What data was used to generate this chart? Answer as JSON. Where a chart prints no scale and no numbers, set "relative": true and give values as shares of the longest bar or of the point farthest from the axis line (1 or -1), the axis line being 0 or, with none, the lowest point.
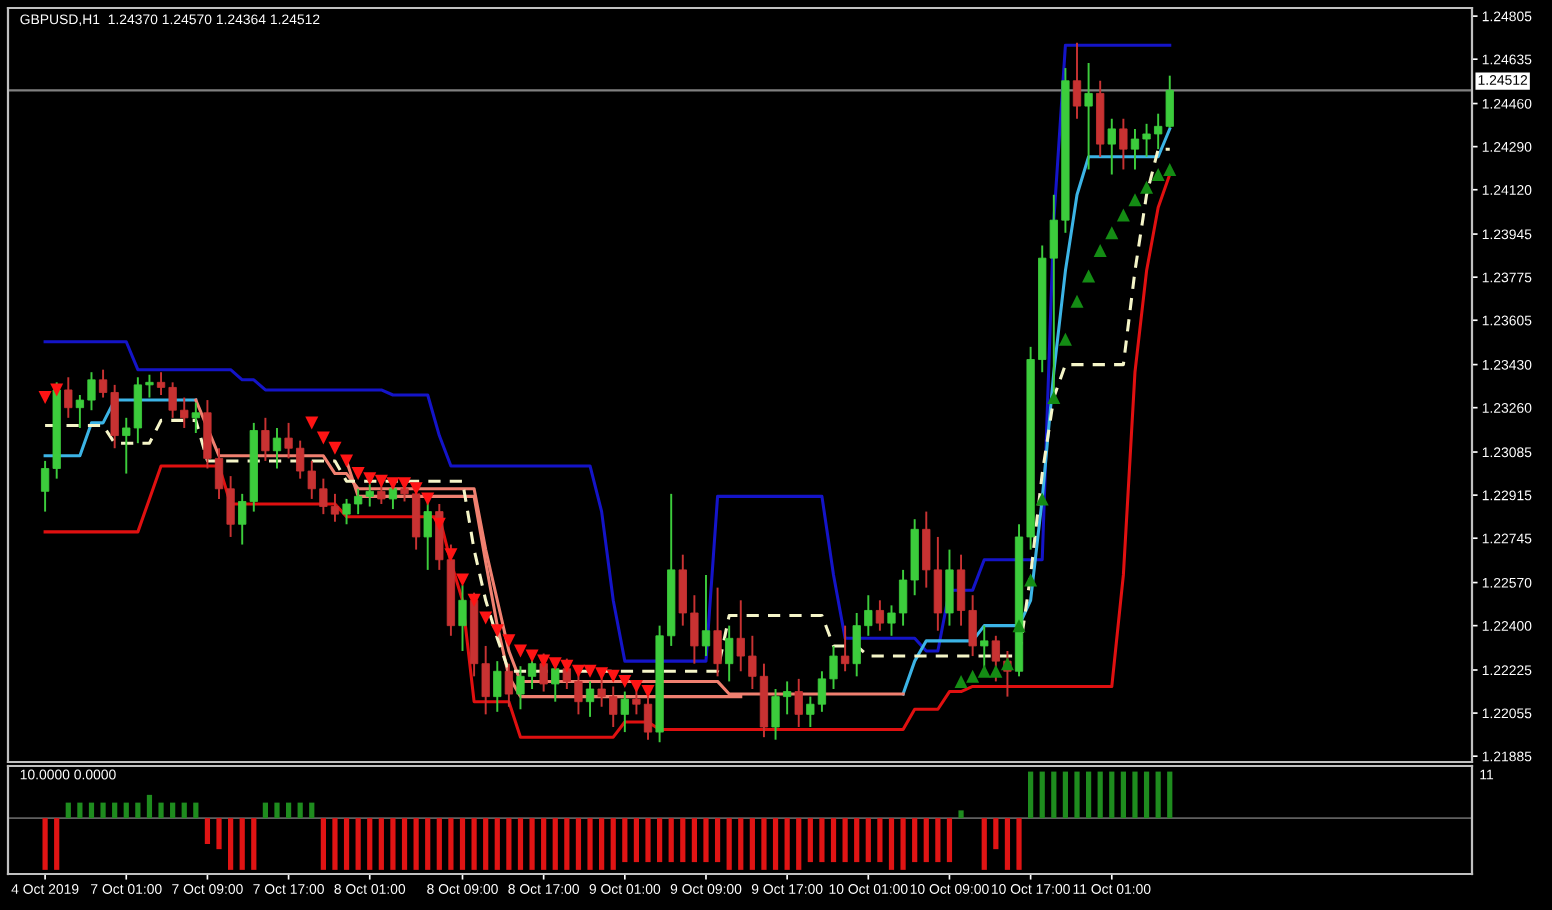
{
  "chart_data": [
    {
      "type": "candlestick",
      "title": "GBPUSD,H1  1.24370 1.24570 1.24364 1.24512",
      "categories": [
        null,
        null,
        null,
        null,
        null,
        null,
        null,
        null,
        null,
        null,
        null,
        null,
        null,
        null,
        null,
        null,
        null,
        null,
        null,
        null,
        null,
        null,
        null,
        null,
        null,
        null,
        null,
        null,
        null,
        null,
        null,
        null,
        null,
        null,
        null,
        null,
        null,
        null,
        null,
        null,
        null,
        null,
        null,
        null,
        null,
        null,
        null,
        null,
        null,
        null,
        null,
        null,
        null,
        null,
        null,
        null,
        null,
        null,
        null,
        null,
        null,
        null,
        null,
        null,
        null,
        null,
        null,
        null,
        null,
        null,
        null,
        null,
        null,
        null,
        null,
        null,
        null,
        null,
        null,
        null,
        null,
        null,
        null,
        null,
        null,
        null,
        null,
        null,
        null,
        null,
        null,
        null,
        null,
        null,
        null,
        null,
        null,
        null
      ],
      "ohlc": [
        [
          1.2293,
          1.2305,
          1.2285,
          1.2302
        ],
        [
          1.2302,
          1.2336,
          1.2298,
          1.2333
        ],
        [
          1.2333,
          1.2338,
          1.2322,
          1.2326
        ],
        [
          1.2326,
          1.2331,
          1.2318,
          1.2329
        ],
        [
          1.2329,
          1.234,
          1.2325,
          1.2337
        ],
        [
          1.2337,
          1.2341,
          1.233,
          1.2332
        ],
        [
          1.2332,
          1.2335,
          1.231,
          1.2315
        ],
        [
          1.2315,
          1.2322,
          1.23,
          1.2318
        ],
        [
          1.2318,
          1.2338,
          1.2312,
          1.2335
        ],
        [
          1.2335,
          1.2339,
          1.233,
          1.2336
        ],
        [
          1.2336,
          1.234,
          1.2331,
          1.2334
        ],
        [
          1.2334,
          1.2336,
          1.2322,
          1.2325
        ],
        [
          1.2325,
          1.233,
          1.2318,
          1.2322
        ],
        [
          1.2322,
          1.2328,
          1.2316,
          1.2324
        ],
        [
          1.2324,
          1.2329,
          1.2302,
          1.2306
        ],
        [
          1.2306,
          1.231,
          1.229,
          1.2294
        ],
        [
          1.2294,
          1.2299,
          1.2275,
          1.228
        ],
        [
          1.228,
          1.2292,
          1.2272,
          1.2289
        ],
        [
          1.2289,
          1.232,
          1.2285,
          1.2317
        ],
        [
          1.2317,
          1.2322,
          1.2305,
          1.2309
        ],
        [
          1.2309,
          1.2318,
          1.2302,
          1.2314
        ],
        [
          1.2314,
          1.232,
          1.2306,
          1.231
        ],
        [
          1.231,
          1.2313,
          1.2298,
          1.2301
        ],
        [
          1.2301,
          1.2305,
          1.229,
          1.2294
        ],
        [
          1.2294,
          1.2298,
          1.2284,
          1.2287
        ],
        [
          1.2287,
          1.2292,
          1.2281,
          1.2284
        ],
        [
          1.2284,
          1.229,
          1.228,
          1.2288
        ],
        [
          1.2288,
          1.2294,
          1.2284,
          1.2291
        ],
        [
          1.2291,
          1.2296,
          1.2287,
          1.2293
        ],
        [
          1.2293,
          1.2297,
          1.2288,
          1.229
        ],
        [
          1.229,
          1.2296,
          1.2286,
          1.2294
        ],
        [
          1.2294,
          1.2298,
          1.2289,
          1.2292
        ],
        [
          1.2292,
          1.2296,
          1.227,
          1.2275
        ],
        [
          1.2275,
          1.229,
          1.2262,
          1.2285
        ],
        [
          1.2285,
          1.2288,
          1.2262,
          1.2266
        ],
        [
          1.2266,
          1.2272,
          1.2236,
          1.224
        ],
        [
          1.224,
          1.2256,
          1.223,
          1.225
        ],
        [
          1.225,
          1.2253,
          1.222,
          1.2225
        ],
        [
          1.2225,
          1.2232,
          1.2205,
          1.2212
        ],
        [
          1.2212,
          1.2226,
          1.2206,
          1.2222
        ],
        [
          1.2222,
          1.2225,
          1.2208,
          1.2213
        ],
        [
          1.2213,
          1.2224,
          1.2207,
          1.222
        ],
        [
          1.222,
          1.2228,
          1.2215,
          1.2225
        ],
        [
          1.2225,
          1.2229,
          1.2214,
          1.2217
        ],
        [
          1.2217,
          1.2226,
          1.221,
          1.2223
        ],
        [
          1.2223,
          1.2227,
          1.2215,
          1.2218
        ],
        [
          1.2218,
          1.2222,
          1.2205,
          1.221
        ],
        [
          1.221,
          1.2218,
          1.2204,
          1.2215
        ],
        [
          1.2215,
          1.222,
          1.2208,
          1.2212
        ],
        [
          1.2212,
          1.2216,
          1.22,
          1.2205
        ],
        [
          1.2205,
          1.2214,
          1.2198,
          1.2211
        ],
        [
          1.2211,
          1.2216,
          1.2205,
          1.2209
        ],
        [
          1.2209,
          1.2212,
          1.2195,
          1.2198
        ],
        [
          1.2198,
          1.224,
          1.2194,
          1.2236
        ],
        [
          1.2236,
          1.2292,
          1.2232,
          1.2262
        ],
        [
          1.2262,
          1.2268,
          1.224,
          1.2245
        ],
        [
          1.2245,
          1.2252,
          1.2225,
          1.2232
        ],
        [
          1.2232,
          1.226,
          1.2228,
          1.2238
        ],
        [
          1.2238,
          1.2255,
          1.222,
          1.2225
        ],
        [
          1.2225,
          1.224,
          1.2218,
          1.2235
        ],
        [
          1.2235,
          1.225,
          1.2222,
          1.2228
        ],
        [
          1.2228,
          1.2236,
          1.2215,
          1.222
        ],
        [
          1.222,
          1.2225,
          1.2196,
          1.22
        ],
        [
          1.22,
          1.2215,
          1.2195,
          1.2212
        ],
        [
          1.2212,
          1.2218,
          1.2205,
          1.2214
        ],
        [
          1.2214,
          1.2219,
          1.22,
          1.2205
        ],
        [
          1.2205,
          1.2212,
          1.22,
          1.2209
        ],
        [
          1.2209,
          1.2222,
          1.2206,
          1.2219
        ],
        [
          1.2219,
          1.2232,
          1.2215,
          1.2228
        ],
        [
          1.2228,
          1.224,
          1.2222,
          1.2225
        ],
        [
          1.2225,
          1.2245,
          1.222,
          1.224
        ],
        [
          1.224,
          1.2252,
          1.2236,
          1.2246
        ],
        [
          1.2246,
          1.225,
          1.2238,
          1.2241
        ],
        [
          1.2241,
          1.2248,
          1.2236,
          1.2245
        ],
        [
          1.2245,
          1.2262,
          1.224,
          1.2258
        ],
        [
          1.2258,
          1.2282,
          1.2252,
          1.2278
        ],
        [
          1.2278,
          1.2285,
          1.2255,
          1.2262
        ],
        [
          1.2262,
          1.2275,
          1.2238,
          1.2245
        ],
        [
          1.2245,
          1.227,
          1.224,
          1.2262
        ],
        [
          1.2262,
          1.2268,
          1.224,
          1.2246
        ],
        [
          1.2246,
          1.2252,
          1.2228,
          1.2232
        ],
        [
          1.2232,
          1.224,
          1.2222,
          1.2234
        ],
        [
          1.2234,
          1.2236,
          1.2218,
          1.2226
        ],
        [
          1.2226,
          1.223,
          1.2212,
          1.2222
        ],
        [
          1.2222,
          1.228,
          1.222,
          1.2275
        ],
        [
          1.2275,
          1.235,
          1.227,
          1.2345
        ],
        [
          1.2345,
          1.239,
          1.234,
          1.2385
        ],
        [
          1.2385,
          1.241,
          1.233,
          1.24
        ],
        [
          1.24,
          1.246,
          1.2395,
          1.2455
        ],
        [
          1.2455,
          1.247,
          1.244,
          1.2445
        ],
        [
          1.2445,
          1.2462,
          1.242,
          1.245
        ],
        [
          1.245,
          1.2455,
          1.2425,
          1.243
        ],
        [
          1.243,
          1.244,
          1.2418,
          1.2436
        ],
        [
          1.2436,
          1.244,
          1.242,
          1.2428
        ],
        [
          1.2428,
          1.2436,
          1.242,
          1.2432
        ],
        [
          1.2432,
          1.2438,
          1.2425,
          1.2434
        ],
        [
          1.2434,
          1.2442,
          1.2428,
          1.2437
        ],
        [
          1.2437,
          1.2457,
          1.24364,
          1.24512
        ]
      ],
      "colors": [
        "#3ccc3c",
        "#3ccc3c",
        "#c83232",
        "#3ccc3c",
        "#3ccc3c",
        "#c83232",
        "#c83232",
        "#3ccc3c",
        "#3ccc3c",
        "#3ccc3c",
        "#c83232",
        "#c83232",
        "#c83232",
        "#3ccc3c",
        "#c83232",
        "#c83232",
        "#c83232",
        "#3ccc3c",
        "#3ccc3c",
        "#c83232",
        "#3ccc3c",
        "#c83232",
        "#c83232",
        "#c83232",
        "#c83232",
        "#c83232",
        "#3ccc3c",
        "#3ccc3c",
        "#3ccc3c",
        "#c83232",
        "#3ccc3c",
        "#c83232",
        "#c83232",
        "#3ccc3c",
        "#c83232",
        "#c83232",
        "#3ccc3c",
        "#c83232",
        "#c83232",
        "#3ccc3c",
        "#c83232",
        "#3ccc3c",
        "#3ccc3c",
        "#c83232",
        "#3ccc3c",
        "#c83232",
        "#c83232",
        "#3ccc3c",
        "#c83232",
        "#c83232",
        "#3ccc3c",
        "#c83232",
        "#c83232",
        "#3ccc3c",
        "#3ccc3c",
        "#c83232",
        "#c83232",
        "#3ccc3c",
        "#c83232",
        "#3ccc3c",
        "#c83232",
        "#c83232",
        "#c83232",
        "#3ccc3c",
        "#3ccc3c",
        "#c83232",
        "#3ccc3c",
        "#3ccc3c",
        "#3ccc3c",
        "#c83232",
        "#3ccc3c",
        "#3ccc3c",
        "#c83232",
        "#3ccc3c",
        "#3ccc3c",
        "#3ccc3c",
        "#c83232",
        "#c83232",
        "#3ccc3c",
        "#c83232",
        "#c83232",
        "#3ccc3c",
        "#c83232",
        "#c83232",
        "#3ccc3c",
        "#3ccc3c",
        "#3ccc3c",
        "#3ccc3c",
        "#3ccc3c",
        "#c83232",
        "#3ccc3c",
        "#c83232",
        "#3ccc3c",
        "#c83232",
        "#3ccc3c",
        "#3ccc3c",
        "#3ccc3c",
        "#3ccc3c"
      ],
      "series": [
        {
          "type": "line",
          "color": "#1414c8",
          "values": [
            1.2352,
            1.2352,
            1.2352,
            1.2352,
            1.2352,
            1.2352,
            1.2352,
            1.2352,
            1.2341,
            1.2341,
            1.2341,
            1.2341,
            1.2341,
            1.2341,
            1.2341,
            1.2341,
            1.2341,
            1.2337,
            1.2337,
            1.2333,
            1.2333,
            1.2333,
            1.2333,
            1.2333,
            1.2333,
            1.2333,
            1.2333,
            1.2333,
            1.2333,
            1.2333,
            1.2331,
            1.2331,
            1.2331,
            1.2331,
            1.2315,
            1.2303,
            1.2303,
            1.2303,
            1.2303,
            1.2303,
            1.2303,
            1.2303,
            1.2303,
            1.2303,
            1.2303,
            1.2303,
            1.2303,
            1.2303,
            1.2285,
            1.225,
            1.2226,
            1.2226,
            1.2226,
            1.2226,
            1.2226,
            1.2226,
            1.2226,
            1.2226,
            1.2291,
            1.2291,
            1.2291,
            1.2291,
            1.2291,
            1.2291,
            1.2291,
            1.2291,
            1.2291,
            1.2291,
            1.226,
            1.2235,
            1.2235,
            1.2235,
            1.2235,
            1.2235,
            1.2235,
            1.2235,
            1.223,
            1.223,
            1.2254,
            1.2254,
            1.2254,
            1.2266,
            1.2266,
            1.2266,
            1.2266,
            1.2266,
            1.2266,
            1.24,
            1.2469,
            1.2469,
            1.2469,
            1.2469,
            1.2469,
            1.2469,
            1.2469,
            1.2469,
            1.2469,
            1.2469
          ]
        },
        {
          "type": "line",
          "color": "#e01010",
          "values": [
            1.2277,
            1.2277,
            1.2277,
            1.2277,
            1.2277,
            1.2277,
            1.2277,
            1.2277,
            1.2277,
            1.229,
            1.2303,
            1.2303,
            1.2303,
            1.2303,
            1.2303,
            1.2303,
            1.2288,
            1.2288,
            1.2288,
            1.2288,
            1.2288,
            1.2288,
            1.2288,
            1.2288,
            1.2288,
            1.2288,
            1.2283,
            1.2283,
            1.2283,
            1.2283,
            1.2283,
            1.2283,
            1.2283,
            1.2283,
            1.2283,
            1.2265,
            1.225,
            1.221,
            1.221,
            1.221,
            1.221,
            1.2196,
            1.2196,
            1.2196,
            1.2196,
            1.2196,
            1.2196,
            1.2196,
            1.2196,
            1.2196,
            1.2202,
            1.2202,
            1.2202,
            1.2199,
            1.2199,
            1.2199,
            1.2199,
            1.2199,
            1.2199,
            1.2199,
            1.2199,
            1.2199,
            1.2199,
            1.2199,
            1.2199,
            1.2199,
            1.2199,
            1.2199,
            1.2199,
            1.2199,
            1.2199,
            1.2199,
            1.2199,
            1.2199,
            1.2199,
            1.2207,
            1.2207,
            1.2207,
            1.2214,
            1.2214,
            1.2216,
            1.2216,
            1.2216,
            1.2216,
            1.2216,
            1.2216,
            1.2216,
            1.2216,
            1.2216,
            1.2216,
            1.2216,
            1.2216,
            1.2216,
            1.226,
            1.234,
            1.238,
            1.2405,
            1.2418
          ]
        },
        {
          "type": "line",
          "color": "#3cb4e6",
          "values": [
            1.2307,
            1.2307,
            1.2307,
            1.2307,
            1.232,
            1.232,
            1.2329,
            1.2329,
            1.2329,
            1.2329,
            1.2329,
            1.2329,
            1.2329,
            1.2329,
            null,
            null,
            null,
            null,
            null,
            null,
            null,
            null,
            null,
            null,
            null,
            null,
            null,
            null,
            null,
            null,
            null,
            null,
            null,
            null,
            null,
            null,
            null,
            null,
            null,
            null,
            null,
            null,
            null,
            null,
            null,
            null,
            null,
            null,
            null,
            null,
            null,
            null,
            null,
            null,
            null,
            null,
            null,
            null,
            null,
            null,
            null,
            null,
            null,
            null,
            null,
            null,
            null,
            null,
            null,
            null,
            null,
            null,
            null,
            null,
            1.2213,
            1.2226,
            1.2234,
            1.2234,
            1.2234,
            1.2234,
            1.2234,
            1.224,
            1.224,
            1.224,
            1.224,
            1.225,
            1.229,
            1.234,
            1.238,
            1.241,
            1.2425,
            1.2425,
            1.2425,
            1.2425,
            1.2425,
            1.2425,
            1.2425,
            1.2436
          ]
        },
        {
          "type": "line",
          "color": "#f08070",
          "values": [
            null,
            null,
            null,
            null,
            null,
            null,
            null,
            null,
            null,
            null,
            null,
            null,
            null,
            1.2329,
            1.2318,
            1.2307,
            1.2307,
            1.2307,
            1.2307,
            1.2307,
            1.2307,
            1.2307,
            1.2307,
            1.2307,
            1.2307,
            1.23,
            1.23,
            1.2294,
            1.2294,
            1.2294,
            1.2294,
            1.2294,
            1.2294,
            1.2294,
            1.2294,
            1.2294,
            1.2294,
            1.2294,
            1.227,
            1.225,
            1.223,
            1.2218,
            1.2218,
            1.2218,
            1.2218,
            1.2218,
            1.2218,
            1.2218,
            1.2218,
            1.2218,
            1.2218,
            1.2218,
            1.2218,
            1.2218,
            1.2218,
            1.2218,
            1.2218,
            1.2218,
            1.2218,
            1.2213,
            1.2213,
            1.2213,
            1.2213,
            1.2213,
            1.2213,
            1.2213,
            1.2213,
            1.2213,
            1.2213,
            1.2213,
            1.2213,
            1.2213,
            1.2213,
            1.2213,
            1.2213,
            null,
            null,
            null,
            null,
            null,
            null,
            null,
            null,
            null,
            null,
            null,
            null,
            null,
            null,
            null,
            null,
            null,
            null,
            null,
            null,
            null,
            null,
            null
          ]
        },
        {
          "type": "line",
          "color": "#f08070",
          "values": [
            null,
            null,
            null,
            null,
            null,
            null,
            null,
            null,
            null,
            null,
            null,
            null,
            null,
            null,
            null,
            null,
            null,
            null,
            null,
            null,
            null,
            null,
            null,
            null,
            null,
            null,
            1.2305,
            1.2291,
            1.2291,
            1.2291,
            1.2291,
            1.2291,
            1.2291,
            1.2291,
            1.2291,
            1.2291,
            1.2291,
            1.2291,
            1.2265,
            1.224,
            1.222,
            1.2212,
            1.2212,
            1.2212,
            1.2212,
            1.2212,
            1.2212,
            1.2212,
            1.2212,
            1.2212,
            1.2212,
            1.2212,
            1.2212,
            1.2212,
            1.2212,
            1.2212,
            1.2212,
            1.2212,
            1.2212,
            1.2212,
            1.2212,
            null,
            null,
            null,
            null,
            null,
            null,
            null,
            null,
            null,
            null,
            null,
            null,
            null,
            null,
            null,
            null,
            null,
            null,
            null,
            null,
            null,
            null,
            null,
            null,
            null,
            null,
            null,
            null,
            null,
            null,
            null,
            null,
            null,
            null,
            null,
            null,
            null
          ]
        },
        {
          "type": "line",
          "color": "#f5f5c8",
          "line_style": "dashed",
          "values": [
            1.2319,
            1.2319,
            1.2319,
            1.2319,
            1.2319,
            1.2319,
            1.2312,
            1.2312,
            1.2312,
            1.2312,
            1.2321,
            1.2321,
            1.2321,
            1.2321,
            1.2305,
            1.2305,
            1.2305,
            1.2305,
            1.2305,
            1.2305,
            1.2305,
            1.2305,
            1.2305,
            1.2305,
            1.2305,
            1.2305,
            1.2297,
            1.2297,
            1.2297,
            1.2297,
            1.2297,
            1.2297,
            1.2297,
            1.2297,
            1.2297,
            1.2297,
            1.2297,
            1.227,
            1.225,
            1.2235,
            1.2222,
            1.2222,
            1.2222,
            1.2222,
            1.2222,
            1.2222,
            1.2222,
            1.2222,
            1.2222,
            1.2222,
            1.2222,
            1.2222,
            1.2222,
            1.2222,
            1.2222,
            1.2222,
            1.2222,
            1.2222,
            1.2222,
            1.2244,
            1.2244,
            1.2244,
            1.2244,
            1.2244,
            1.2244,
            1.2244,
            1.2244,
            1.2244,
            1.2232,
            1.2232,
            1.2232,
            1.2228,
            1.2228,
            1.2228,
            1.2228,
            1.2228,
            1.2228,
            1.2228,
            1.2228,
            1.2228,
            1.2228,
            1.2228,
            1.2228,
            1.2228,
            1.2228,
            1.226,
            1.23,
            1.233,
            1.2343,
            1.2343,
            1.2343,
            1.2343,
            1.2343,
            1.2343,
            1.238,
            1.241,
            1.2428,
            1.2428
          ]
        },
        {
          "type": "scatter",
          "marker": "triangle_down",
          "color": "#ff1414",
          "values": [
            1.233,
            1.2333,
            null,
            null,
            null,
            null,
            null,
            null,
            null,
            null,
            null,
            null,
            null,
            null,
            null,
            null,
            null,
            null,
            null,
            null,
            null,
            null,
            null,
            1.232,
            1.2314,
            1.231,
            1.2305,
            1.23,
            1.2298,
            1.2297,
            1.2296,
            1.2296,
            1.2294,
            1.229,
            1.228,
            1.2268,
            1.2258,
            1.225,
            1.2243,
            1.2238,
            1.2234,
            1.223,
            1.2228,
            1.2226,
            1.2225,
            1.2224,
            1.2222,
            1.2222,
            1.2221,
            1.222,
            1.2218,
            1.2216,
            1.2214,
            null,
            null,
            null,
            null,
            null,
            null,
            null,
            null,
            null,
            null,
            null,
            null,
            null,
            null,
            null,
            null,
            null,
            null,
            null,
            null,
            null,
            null,
            null,
            null,
            null,
            null,
            null,
            null,
            null,
            null,
            null,
            null,
            null,
            null,
            null,
            null,
            null,
            null,
            null,
            null,
            null,
            null,
            null,
            null,
            null
          ]
        },
        {
          "type": "scatter",
          "marker": "triangle",
          "color": "#148c14",
          "values": [
            null,
            null,
            null,
            null,
            null,
            null,
            null,
            null,
            null,
            null,
            null,
            null,
            null,
            null,
            null,
            null,
            null,
            null,
            null,
            null,
            null,
            null,
            null,
            null,
            null,
            null,
            null,
            null,
            null,
            null,
            null,
            null,
            null,
            null,
            null,
            null,
            null,
            null,
            null,
            null,
            null,
            null,
            null,
            null,
            null,
            null,
            null,
            null,
            null,
            null,
            null,
            null,
            null,
            null,
            null,
            null,
            null,
            null,
            null,
            null,
            null,
            null,
            null,
            null,
            null,
            null,
            null,
            null,
            null,
            null,
            null,
            null,
            null,
            null,
            null,
            null,
            null,
            null,
            null,
            1.2218,
            1.222,
            1.2222,
            1.2222,
            1.2225,
            1.224,
            1.2258,
            1.229,
            1.233,
            1.2353,
            1.2368,
            1.2378,
            1.2388,
            1.2395,
            1.2402,
            1.2408,
            1.2413,
            1.2418,
            1.242
          ]
        }
      ],
      "ylim": [
        1.21862,
        1.24837
      ],
      "yticks": [
        {
          "value": 1.24805,
          "label": "1.24805"
        },
        {
          "value": 1.24635,
          "label": "1.24635"
        },
        {
          "value": 1.2446,
          "label": "1.24460"
        },
        {
          "value": 1.2429,
          "label": "1.24290"
        },
        {
          "value": 1.2412,
          "label": "1.24120"
        },
        {
          "value": 1.23945,
          "label": "1.23945"
        },
        {
          "value": 1.23775,
          "label": "1.23775"
        },
        {
          "value": 1.23605,
          "label": "1.23605"
        },
        {
          "value": 1.2343,
          "label": "1.23430"
        },
        {
          "value": 1.2326,
          "label": "1.23260"
        },
        {
          "value": 1.23085,
          "label": "1.23085"
        },
        {
          "value": 1.22915,
          "label": "1.22915"
        },
        {
          "value": 1.22745,
          "label": "1.22745"
        },
        {
          "value": 1.2257,
          "label": "1.22570"
        },
        {
          "value": 1.224,
          "label": "1.22400"
        },
        {
          "value": 1.22225,
          "label": "1.22225"
        },
        {
          "value": 1.22055,
          "label": "1.22055"
        },
        {
          "value": 1.21885,
          "label": "1.21885"
        }
      ],
      "ref_lines": [
        {
          "axis": "y",
          "value": 1.24512,
          "label": "1.24512",
          "color": "#808080"
        }
      ],
      "tick_labels": "y",
      "grid": false
    },
    {
      "type": "bar",
      "relative": true,
      "tick_labels": "x",
      "annotations": [
        "10.0000 0.0000",
        "11"
      ],
      "categories": [
        "4 Oct 2019",
        null,
        null,
        null,
        null,
        null,
        null,
        "7 Oct 01:00",
        null,
        null,
        null,
        null,
        null,
        null,
        "7 Oct 09:00",
        null,
        null,
        null,
        null,
        null,
        null,
        "7 Oct 17:00",
        null,
        null,
        null,
        null,
        null,
        null,
        "8 Oct 01:00",
        null,
        null,
        null,
        null,
        null,
        null,
        null,
        "8 Oct 09:00",
        null,
        null,
        null,
        null,
        null,
        null,
        "8 Oct 17:00",
        null,
        null,
        null,
        null,
        null,
        null,
        "9 Oct 01:00",
        null,
        null,
        null,
        null,
        null,
        null,
        "9 Oct 09:00",
        null,
        null,
        null,
        null,
        null,
        null,
        "9 Oct 17:00",
        null,
        null,
        null,
        null,
        null,
        null,
        "10 Oct 01:00",
        null,
        null,
        null,
        null,
        null,
        null,
        "10 Oct 09:00",
        null,
        null,
        null,
        null,
        null,
        null,
        "10 Oct 17:00",
        null,
        null,
        null,
        null,
        null,
        null,
        "11 Oct 01:00",
        null,
        null,
        null,
        null,
        null
      ],
      "values": [
        -1,
        -1,
        0.3,
        0.3,
        0.3,
        0.3,
        0.3,
        0.3,
        0.3,
        0.45,
        0.3,
        0.3,
        0.3,
        0.3,
        -0.5,
        -0.6,
        -1,
        -1,
        -1,
        0.3,
        0.3,
        0.3,
        0.3,
        0.3,
        -1,
        -1,
        -1,
        -1,
        -1,
        -1,
        -1,
        -1,
        -1,
        -1,
        -1,
        -1,
        -1,
        -1,
        -1,
        -1,
        -1,
        -1,
        -1,
        -1,
        -1,
        -1,
        -1,
        -1,
        -1,
        -1,
        -0.85,
        -0.85,
        -0.85,
        -0.85,
        -0.85,
        -0.85,
        -0.85,
        -0.85,
        -0.85,
        -1,
        -1,
        -1,
        -1,
        -1,
        -1,
        -1,
        -0.85,
        -0.85,
        -0.85,
        -0.85,
        -0.85,
        -0.85,
        -0.85,
        -1,
        -1,
        -0.85,
        -0.85,
        -0.85,
        -0.85,
        0.15,
        null,
        -1,
        -0.6,
        -1,
        -1,
        0.9,
        0.9,
        0.9,
        0.9,
        0.9,
        0.9,
        0.9,
        0.9,
        0.9,
        0.9,
        0.9,
        0.9,
        0.9
      ],
      "colors": [
        "#e01414",
        "#e01414",
        "#1e8c1e",
        "#1e8c1e",
        "#1e8c1e",
        "#1e8c1e",
        "#1e8c1e",
        "#1e8c1e",
        "#1e8c1e",
        "#1e8c1e",
        "#1e8c1e",
        "#1e8c1e",
        "#1e8c1e",
        "#1e8c1e",
        "#e01414",
        "#e01414",
        "#e01414",
        "#e01414",
        "#e01414",
        "#1e8c1e",
        "#1e8c1e",
        "#1e8c1e",
        "#1e8c1e",
        "#1e8c1e",
        "#e01414",
        "#e01414",
        "#e01414",
        "#e01414",
        "#e01414",
        "#e01414",
        "#e01414",
        "#e01414",
        "#e01414",
        "#e01414",
        "#e01414",
        "#e01414",
        "#e01414",
        "#e01414",
        "#e01414",
        "#e01414",
        "#e01414",
        "#e01414",
        "#e01414",
        "#e01414",
        "#e01414",
        "#e01414",
        "#e01414",
        "#e01414",
        "#e01414",
        "#e01414",
        "#e01414",
        "#e01414",
        "#e01414",
        "#e01414",
        "#e01414",
        "#e01414",
        "#e01414",
        "#e01414",
        "#e01414",
        "#e01414",
        "#e01414",
        "#e01414",
        "#e01414",
        "#e01414",
        "#e01414",
        "#e01414",
        "#e01414",
        "#e01414",
        "#e01414",
        "#e01414",
        "#e01414",
        "#e01414",
        "#e01414",
        "#e01414",
        "#e01414",
        "#e01414",
        "#e01414",
        "#e01414",
        "#e01414",
        "#1e8c1e",
        "#1e8c1e",
        "#e01414",
        "#e01414",
        "#e01414",
        "#e01414",
        "#1e8c1e",
        "#1e8c1e",
        "#1e8c1e",
        "#1e8c1e",
        "#1e8c1e",
        "#1e8c1e",
        "#1e8c1e",
        "#1e8c1e",
        "#1e8c1e",
        "#1e8c1e",
        "#1e8c1e",
        "#1e8c1e",
        "#1e8c1e"
      ],
      "grid": false
    }
  ]
}
